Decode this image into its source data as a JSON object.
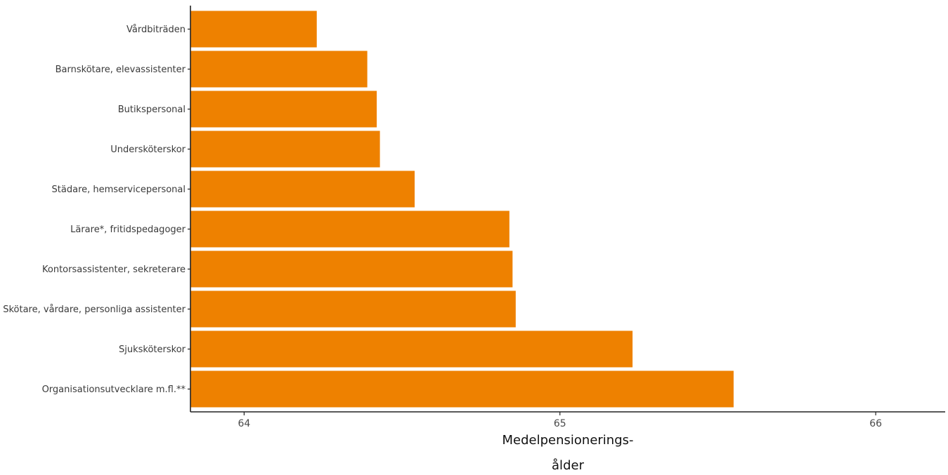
{
  "chart_data": {
    "type": "bar",
    "orientation": "horizontal",
    "categories": [
      "Vårdbiträden",
      "Barnskötare, elevassistenter",
      "Butikspersonal",
      "Undersköterskor",
      "Städare, hemservicepersonal",
      "Lärare*, fritidspedagoger",
      "Kontorsassistenter, sekreterare",
      "Skötare, vårdare, personliga assistenter",
      "Sjuksköterskor",
      "Organisationsutvecklare m.fl.**"
    ],
    "values": [
      64.23,
      64.39,
      64.42,
      64.43,
      64.54,
      64.84,
      64.85,
      64.86,
      65.23,
      65.55
    ],
    "xlim": [
      63.83,
      66.22
    ],
    "xticks": [
      64,
      65,
      66
    ],
    "xtick_labels": [
      "64",
      "65",
      "66"
    ],
    "xlabel_lines": [
      "Medelpensionerings-",
      "ålder"
    ],
    "ylabel": "",
    "title": "",
    "bar_color": "#ee8100",
    "grid": false,
    "legend": false
  }
}
